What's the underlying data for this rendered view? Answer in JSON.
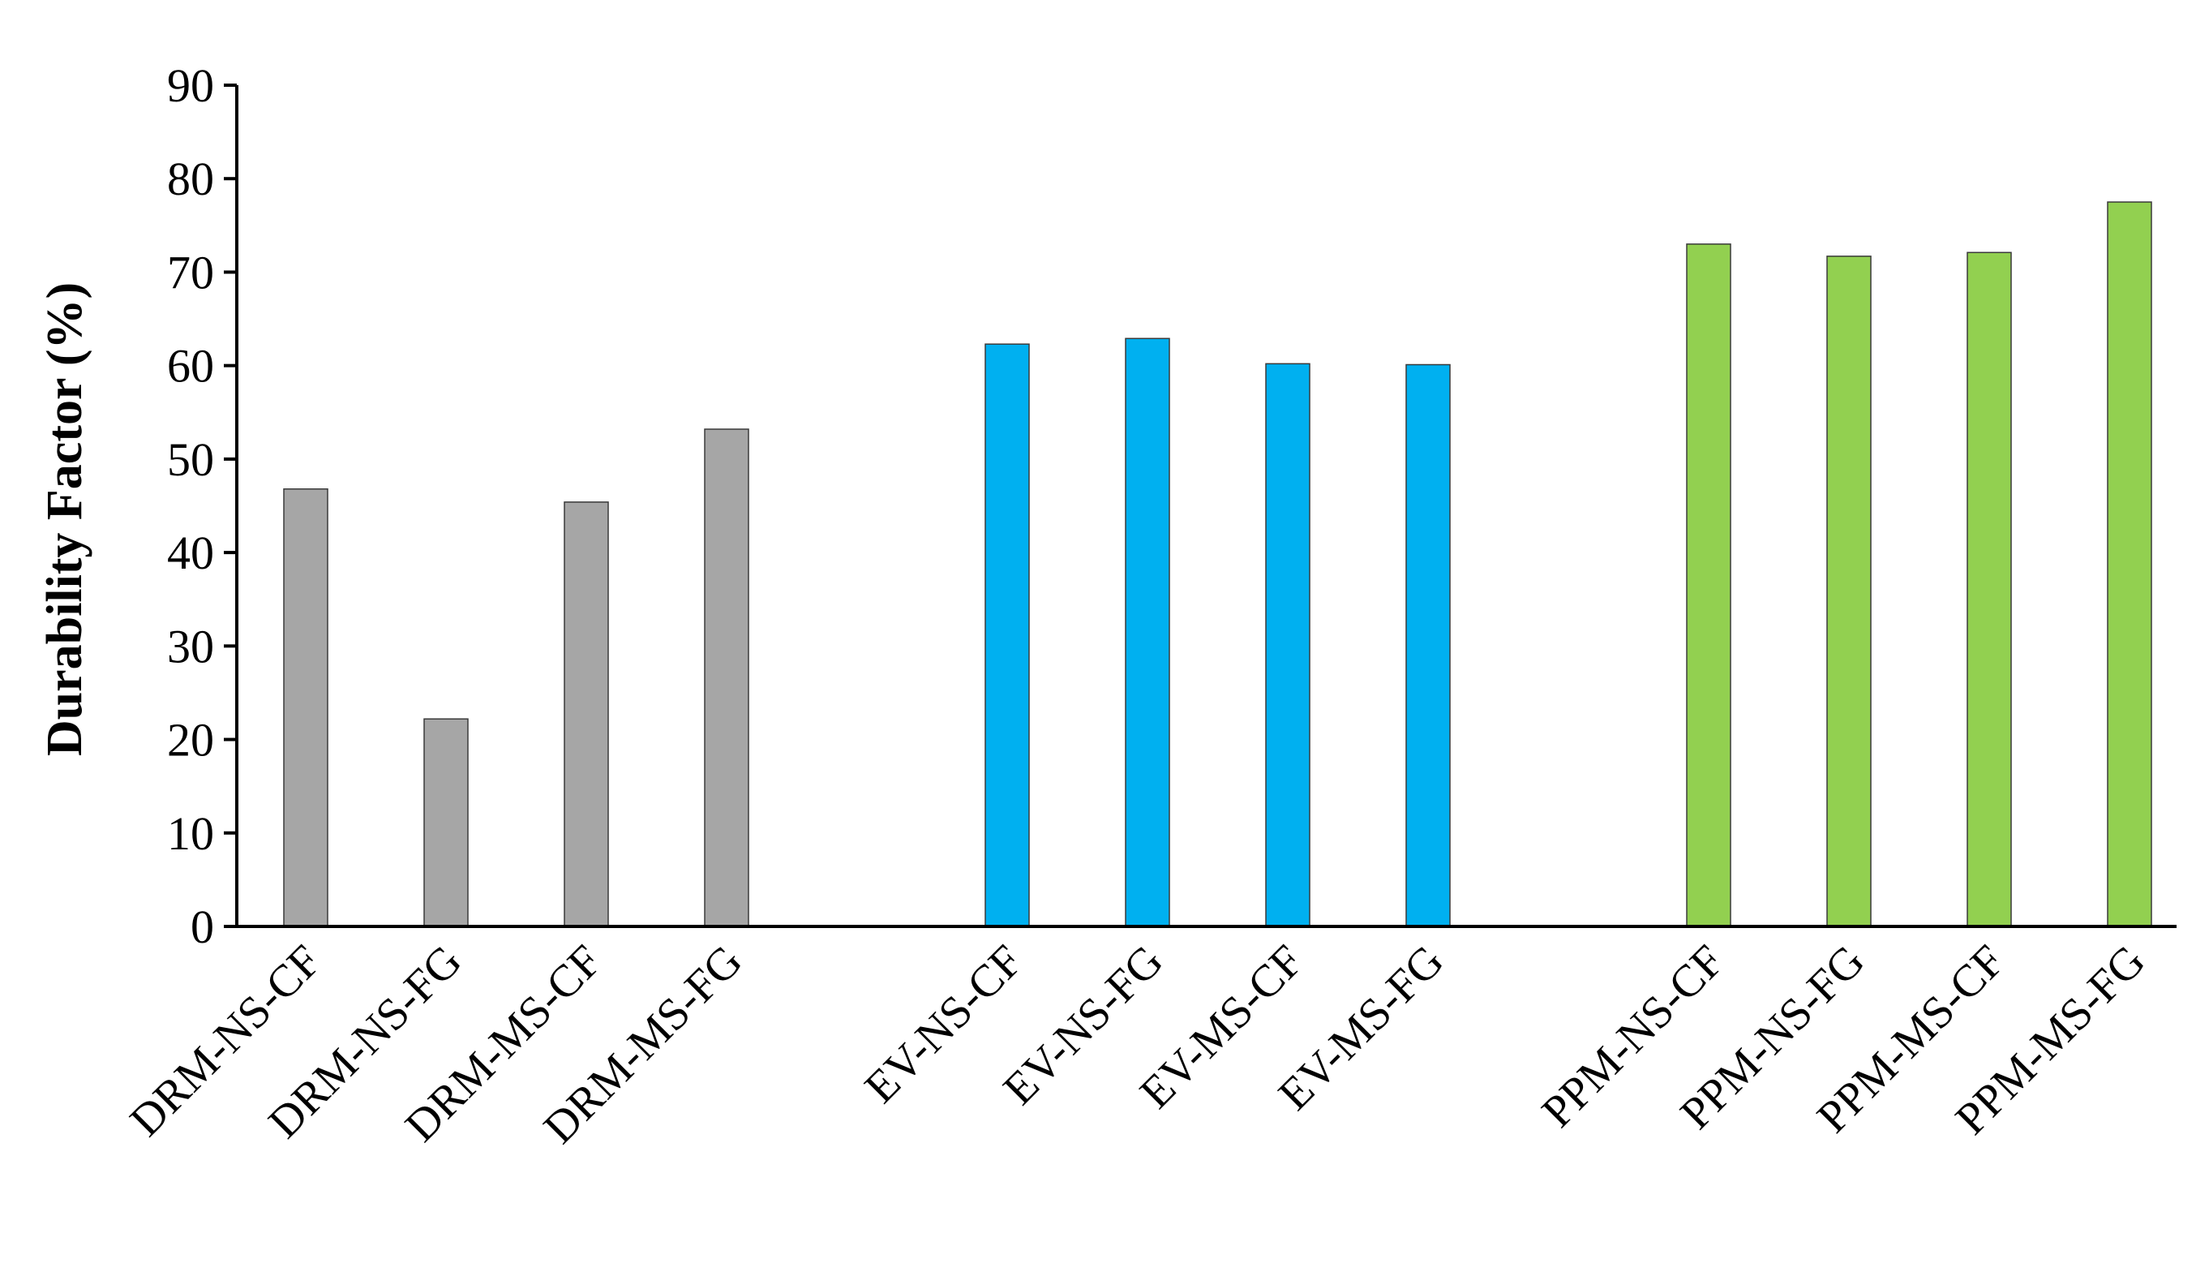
{
  "chart_data": {
    "type": "bar",
    "title": "",
    "xlabel": "",
    "ylabel": "Durability Factor (%)",
    "ylim": [
      0,
      90
    ],
    "yticks": [
      0,
      10,
      20,
      30,
      40,
      50,
      60,
      70,
      80,
      90
    ],
    "grid": false,
    "legend": "none",
    "categories": [
      "DRM-NS-CF",
      "DRM-NS-FG",
      "DRM-MS-CF",
      "DRM-MS-FG",
      "EV-NS-CF",
      "EV-NS-FG",
      "EV-MS-CF",
      "EV-MS-FG",
      "PPM-NS-CF",
      "PPM-NS-FG",
      "PPM-MS-CF",
      "PPM-MS-FG"
    ],
    "groups": [
      {
        "categories": [
          "DRM-NS-CF",
          "DRM-NS-FG",
          "DRM-MS-CF",
          "DRM-MS-FG"
        ],
        "color": "#a6a6a6"
      },
      {
        "categories": [
          "EV-NS-CF",
          "EV-NS-FG",
          "EV-MS-CF",
          "EV-MS-FG"
        ],
        "color": "#00b0f0"
      },
      {
        "categories": [
          "PPM-NS-CF",
          "PPM-NS-FG",
          "PPM-MS-CF",
          "PPM-MS-FG"
        ],
        "color": "#92d050"
      }
    ],
    "values": [
      46.8,
      22.2,
      45.4,
      53.2,
      62.3,
      62.9,
      60.2,
      60.1,
      73.0,
      71.7,
      72.1,
      77.5
    ]
  }
}
